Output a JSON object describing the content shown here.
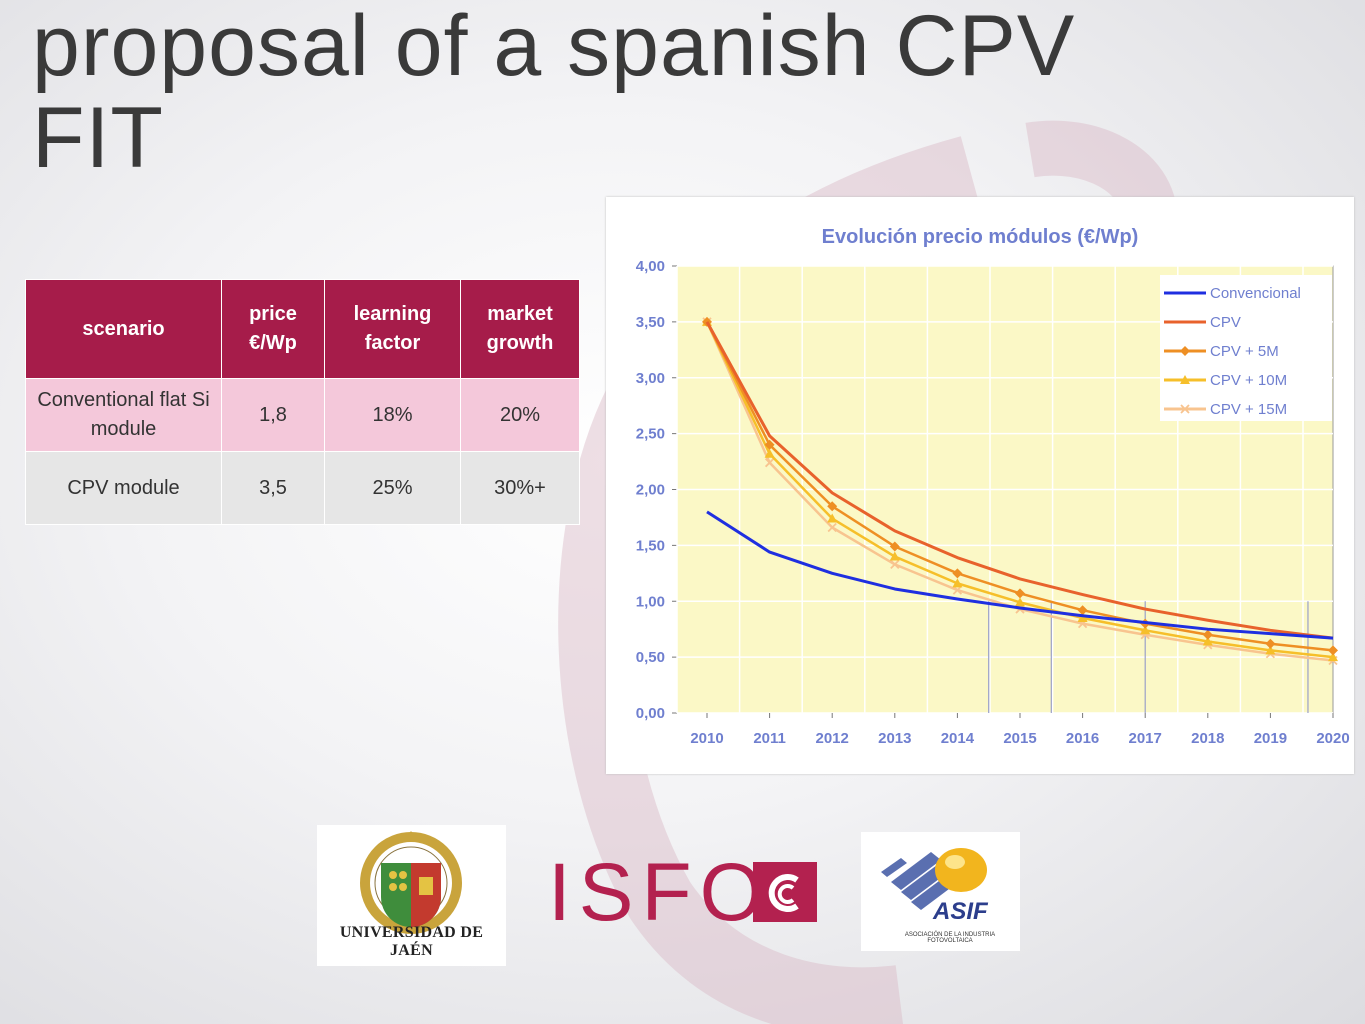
{
  "slide": {
    "title": "proposal of a spanish CPV FIT"
  },
  "table": {
    "headers": [
      "scenario",
      "price €/Wp",
      "learning factor",
      "market growth"
    ],
    "rows": [
      [
        "Conventional flat Si module",
        "1,8",
        "18%",
        "20%"
      ],
      [
        "CPV module",
        "3,5",
        "25%",
        "30%+"
      ]
    ]
  },
  "chart_data": {
    "type": "line",
    "title": "Evolución precio módulos (€/Wp)",
    "x": [
      2010,
      2011,
      2012,
      2013,
      2014,
      2015,
      2016,
      2017,
      2018,
      2019,
      2020
    ],
    "xticks": [
      "2010",
      "2011",
      "2012",
      "2013",
      "2014",
      "2015",
      "2016",
      "2017",
      "2018",
      "2019",
      "2020"
    ],
    "yticks": [
      "0,00",
      "0,50",
      "1,00",
      "1,50",
      "2,00",
      "2,50",
      "3,00",
      "3,50",
      "4,00"
    ],
    "ylim": [
      0,
      4
    ],
    "grid": true,
    "legend_position": "top-right",
    "background_color": "#fbf8c6",
    "series": [
      {
        "name": "Convencional",
        "color": "#1f2fe0",
        "marker": "none",
        "values": [
          1.8,
          1.44,
          1.25,
          1.11,
          1.02,
          0.94,
          0.87,
          0.81,
          0.75,
          0.71,
          0.67
        ]
      },
      {
        "name": "CPV",
        "color": "#e8622c",
        "marker": "none",
        "values": [
          3.5,
          2.48,
          1.97,
          1.63,
          1.39,
          1.2,
          1.06,
          0.93,
          0.83,
          0.74,
          0.67
        ]
      },
      {
        "name": "CPV +  5M",
        "color": "#ee8f24",
        "marker": "diamond",
        "values": [
          3.5,
          2.4,
          1.85,
          1.49,
          1.25,
          1.07,
          0.92,
          0.8,
          0.7,
          0.62,
          0.56
        ]
      },
      {
        "name": "CPV + 10M",
        "color": "#f6bf2a",
        "marker": "triangle",
        "values": [
          3.5,
          2.32,
          1.74,
          1.4,
          1.16,
          0.99,
          0.85,
          0.74,
          0.64,
          0.56,
          0.5
        ]
      },
      {
        "name": "CPV + 15M",
        "color": "#f8c48f",
        "marker": "x",
        "values": [
          3.5,
          2.24,
          1.66,
          1.33,
          1.1,
          0.93,
          0.8,
          0.7,
          0.61,
          0.53,
          0.47
        ]
      }
    ],
    "markers_vertical_at": [
      2014.5,
      2015.5,
      2017.0,
      2019.6
    ]
  },
  "logos": {
    "uja": "UNIVERSIDAD DE JAÉN",
    "isfoc": "ISFO",
    "asif": "ASIF",
    "asif_sub": "ASOCIACIÓN DE LA INDUSTRIA FOTOVOLTAICA"
  }
}
